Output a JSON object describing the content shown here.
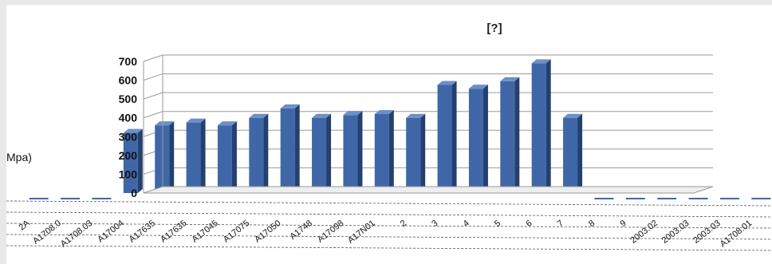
{
  "chart_data": {
    "type": "bar",
    "title": "[?]",
    "ylabel": "Mpa)",
    "xlabel": "",
    "ylim": [
      0,
      700
    ],
    "yticks": [
      0,
      100,
      200,
      300,
      400,
      500,
      600,
      700
    ],
    "ytick_labels": [
      "0",
      "100",
      "200",
      "300",
      "400",
      "500",
      "600",
      "700"
    ],
    "grid": true,
    "legend": "none",
    "bar_color": "#3f67a8",
    "categories": [
      "2A",
      "A1708.0",
      "A1708.03",
      "A17004",
      "A17635",
      "A17635",
      "A17045",
      "A17075",
      "A17050",
      "A1748",
      "A17098",
      "A17N01",
      "2",
      "3",
      "4",
      "5",
      "6",
      "7",
      "8",
      "9",
      "2003.02",
      "2003.03",
      "2003.03",
      "A1708.01"
    ],
    "values": [
      0,
      0,
      0,
      320,
      360,
      375,
      360,
      400,
      450,
      400,
      415,
      420,
      400,
      575,
      555,
      595,
      690,
      400,
      0,
      0,
      0,
      0,
      0,
      0
    ]
  }
}
